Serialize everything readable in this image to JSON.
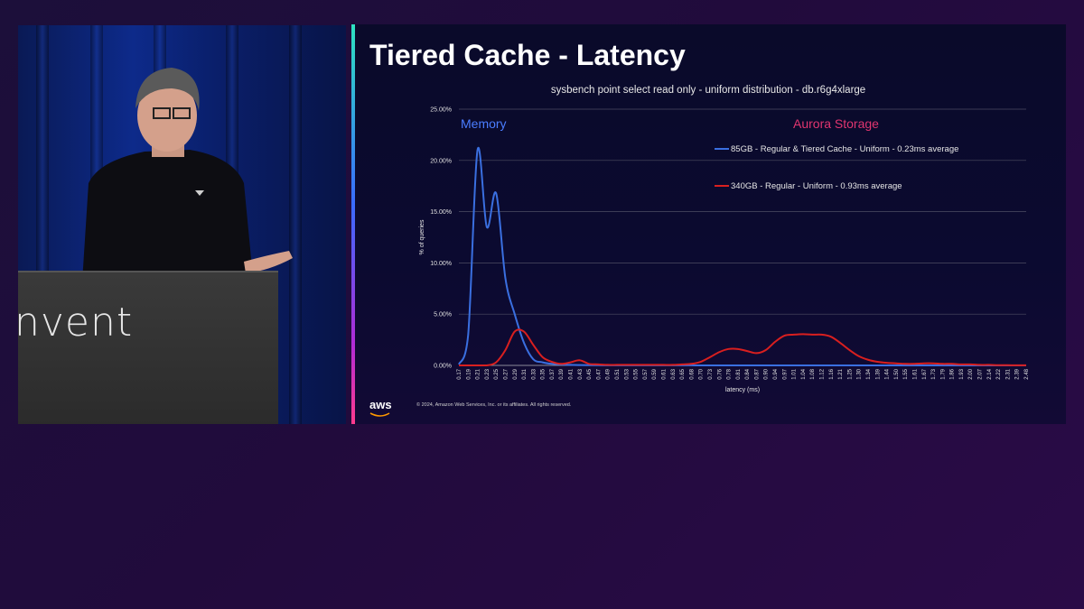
{
  "speaker": {
    "podium_text": "nvent"
  },
  "slide": {
    "title": "Tiered Cache - Latency",
    "copyright": "© 2024, Amazon Web Services, Inc. or its affiliates. All rights reserved.",
    "logo_text": "aws",
    "accent_gradient": [
      "#2de3c0",
      "#3a6bff",
      "#b12bd6",
      "#ff3b8d"
    ]
  },
  "chart_data": {
    "type": "line",
    "title": "sysbench point select read only - uniform distribution - db.r6g4xlarge",
    "xlabel": "latency (ms)",
    "ylabel": "% of queries",
    "ylim": [
      0,
      25
    ],
    "y_ticks": [
      "0.00%",
      "5.00%",
      "10.00%",
      "15.00%",
      "20.00%",
      "25.00%"
    ],
    "grid": true,
    "legend_position": "top-right",
    "annotations": [
      {
        "text": "Memory",
        "color": "#4a7dff"
      },
      {
        "text": "Aurora Storage",
        "color": "#e0356f"
      }
    ],
    "x": [
      "0.17",
      "0.19",
      "0.21",
      "0.23",
      "0.25",
      "0.27",
      "0.29",
      "0.31",
      "0.33",
      "0.35",
      "0.37",
      "0.39",
      "0.41",
      "0.43",
      "0.45",
      "0.47",
      "0.49",
      "0.51",
      "0.53",
      "0.55",
      "0.57",
      "0.59",
      "0.61",
      "0.63",
      "0.65",
      "0.68",
      "0.70",
      "0.73",
      "0.76",
      "0.78",
      "0.81",
      "0.84",
      "0.87",
      "0.90",
      "0.94",
      "0.97",
      "1.01",
      "1.04",
      "1.08",
      "1.12",
      "1.16",
      "1.21",
      "1.25",
      "1.30",
      "1.34",
      "1.39",
      "1.44",
      "1.50",
      "1.55",
      "1.61",
      "1.67",
      "1.73",
      "1.79",
      "1.86",
      "1.93",
      "2.00",
      "2.07",
      "2.14",
      "2.22",
      "2.31",
      "2.39",
      "2.48"
    ],
    "series": [
      {
        "name": "85GB - Regular & Tiered Cache - Uniform  - 0.23ms average",
        "color": "#3a6fe0",
        "values": [
          0.1,
          3.0,
          21.0,
          13.5,
          16.8,
          8.5,
          5.0,
          2.2,
          0.6,
          0.3,
          0.15,
          0.1,
          0.05,
          0.03,
          0.02,
          0.02,
          0.01,
          0.01,
          0.01,
          0.01,
          0.01,
          0.01,
          0.01,
          0.01,
          0.01,
          0.01,
          0,
          0,
          0,
          0,
          0,
          0,
          0,
          0,
          0,
          0,
          0,
          0,
          0,
          0,
          0,
          0,
          0,
          0,
          0,
          0,
          0,
          0,
          0,
          0,
          0,
          0,
          0,
          0,
          0,
          0,
          0,
          0,
          0,
          0,
          0,
          0
        ]
      },
      {
        "name": "340GB - Regular - Uniform - 0.93ms average",
        "color": "#d91f1f",
        "values": [
          0,
          0,
          0,
          0,
          0.3,
          1.5,
          3.3,
          3.3,
          2.0,
          0.8,
          0.35,
          0.15,
          0.3,
          0.5,
          0.15,
          0.1,
          0.05,
          0.05,
          0.05,
          0.05,
          0.05,
          0.05,
          0.05,
          0.05,
          0.1,
          0.15,
          0.35,
          0.8,
          1.3,
          1.6,
          1.6,
          1.4,
          1.2,
          1.5,
          2.3,
          2.9,
          3.0,
          3.05,
          3.0,
          3.0,
          2.8,
          2.2,
          1.5,
          0.9,
          0.55,
          0.35,
          0.25,
          0.2,
          0.15,
          0.15,
          0.2,
          0.2,
          0.15,
          0.15,
          0.1,
          0.1,
          0.05,
          0.05,
          0.02,
          0.02,
          0.01,
          0.01
        ]
      }
    ]
  }
}
